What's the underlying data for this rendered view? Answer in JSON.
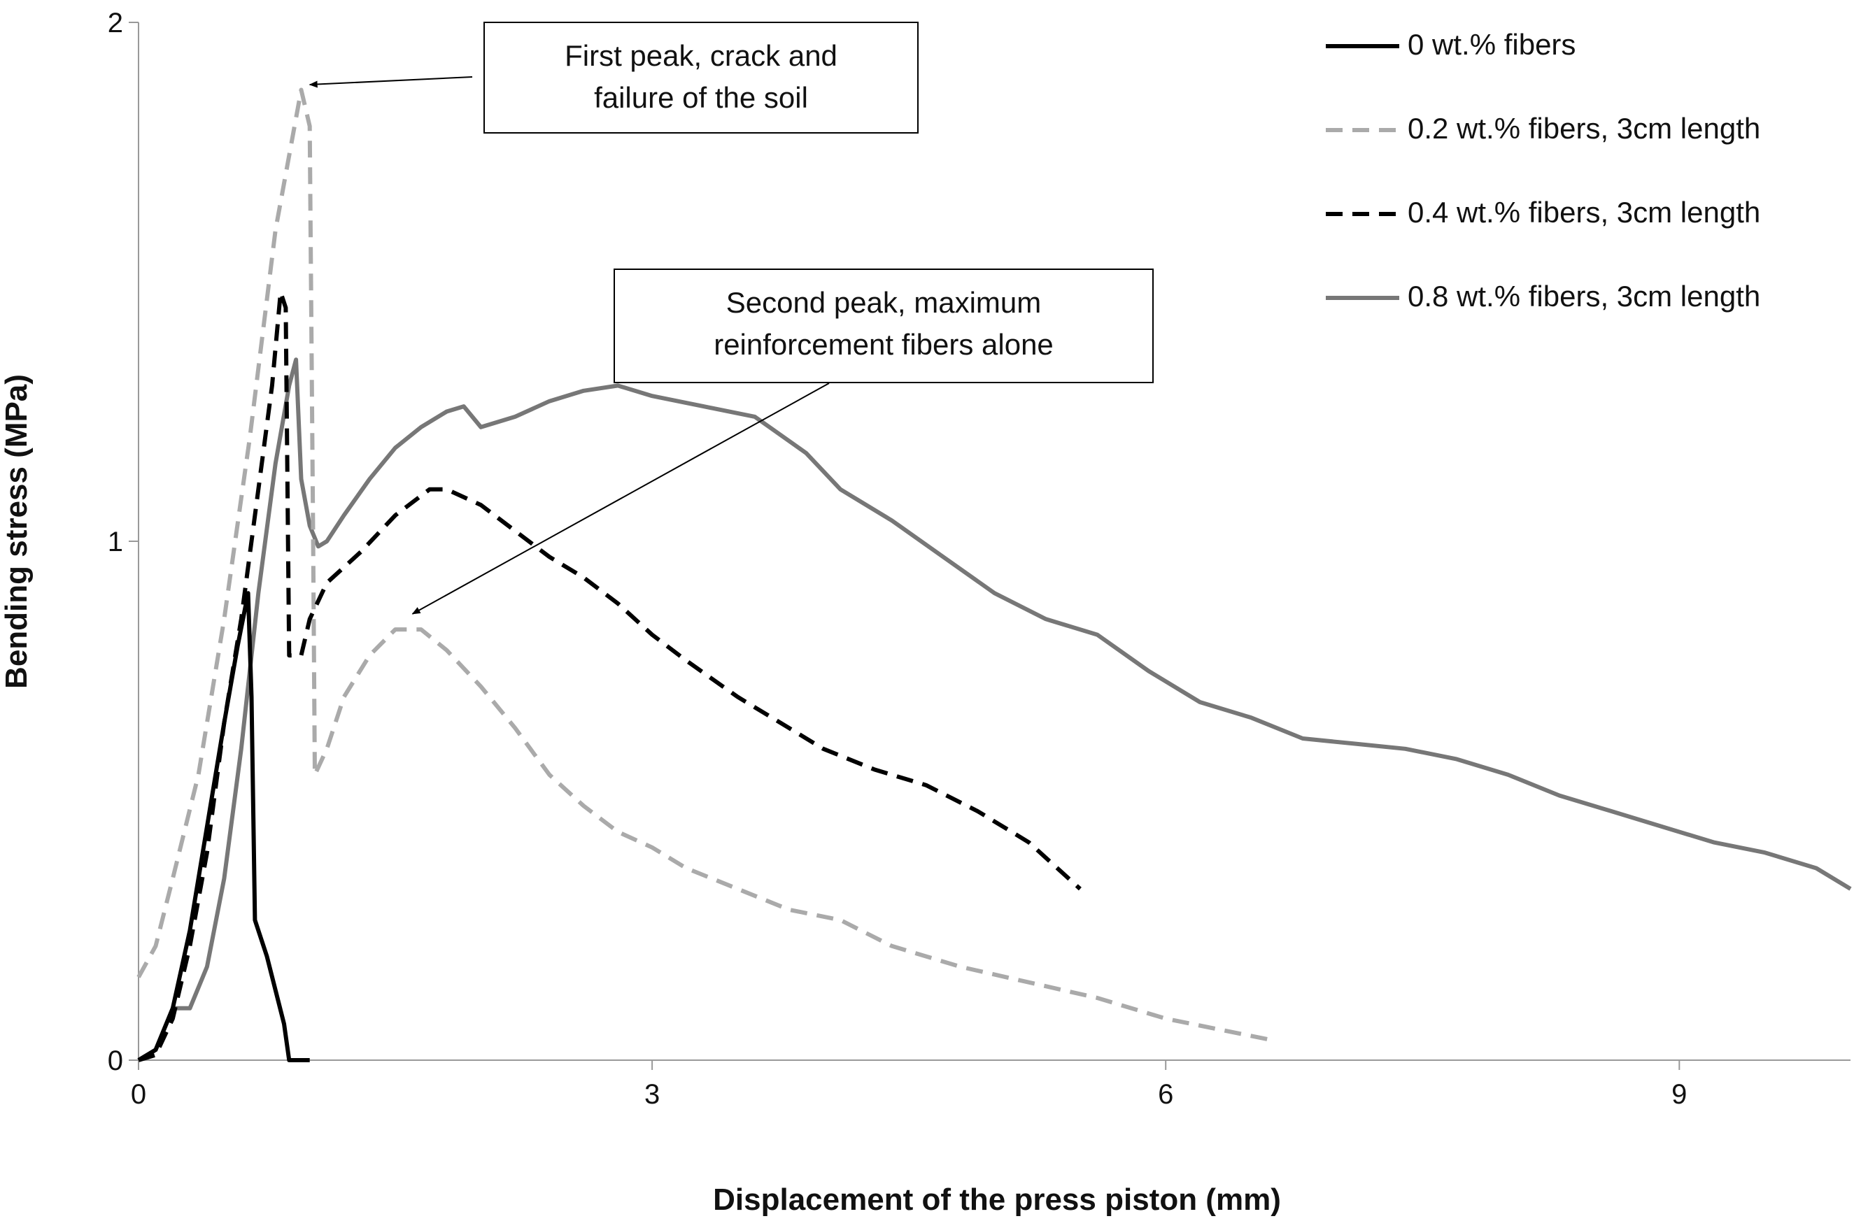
{
  "chart_data": {
    "type": "line",
    "title": "",
    "xlabel": "Displacement of the press piston (mm)",
    "ylabel": "Bending stress (MPa)",
    "xlim": [
      0,
      10
    ],
    "ylim": [
      0,
      2
    ],
    "xticks": [
      0,
      3,
      6,
      9
    ],
    "xtick_labels": [
      "0",
      "3",
      "6",
      "9"
    ],
    "yticks": [
      0,
      1,
      2
    ],
    "ytick_labels": [
      "0",
      "1",
      "2"
    ],
    "grid": false,
    "legend_position": "top-right",
    "series": [
      {
        "name": "0 wt.% fibers",
        "color": "#000000",
        "dash": "solid",
        "points": [
          [
            0,
            0
          ],
          [
            0.1,
            0.02
          ],
          [
            0.2,
            0.1
          ],
          [
            0.3,
            0.25
          ],
          [
            0.4,
            0.45
          ],
          [
            0.5,
            0.65
          ],
          [
            0.58,
            0.8
          ],
          [
            0.64,
            0.9
          ],
          [
            0.66,
            0.7
          ],
          [
            0.68,
            0.27
          ],
          [
            0.75,
            0.2
          ],
          [
            0.85,
            0.07
          ],
          [
            0.88,
            0
          ],
          [
            1.0,
            0
          ]
        ]
      },
      {
        "name": "0.2 wt.% fibers, 3cm length",
        "color": "#aaaaaa",
        "dash": "dashed",
        "points": [
          [
            0,
            0.16
          ],
          [
            0.1,
            0.22
          ],
          [
            0.2,
            0.35
          ],
          [
            0.35,
            0.55
          ],
          [
            0.5,
            0.85
          ],
          [
            0.65,
            1.2
          ],
          [
            0.8,
            1.6
          ],
          [
            0.95,
            1.87
          ],
          [
            1.0,
            1.8
          ],
          [
            1.02,
            1.0
          ],
          [
            1.03,
            0.55
          ],
          [
            1.1,
            0.6
          ],
          [
            1.2,
            0.7
          ],
          [
            1.35,
            0.78
          ],
          [
            1.5,
            0.83
          ],
          [
            1.65,
            0.83
          ],
          [
            1.8,
            0.79
          ],
          [
            2.0,
            0.72
          ],
          [
            2.2,
            0.64
          ],
          [
            2.4,
            0.55
          ],
          [
            2.6,
            0.49
          ],
          [
            2.8,
            0.44
          ],
          [
            3.0,
            0.41
          ],
          [
            3.2,
            0.37
          ],
          [
            3.5,
            0.33
          ],
          [
            3.8,
            0.29
          ],
          [
            4.1,
            0.27
          ],
          [
            4.4,
            0.22
          ],
          [
            4.8,
            0.18
          ],
          [
            5.2,
            0.15
          ],
          [
            5.6,
            0.12
          ],
          [
            6.0,
            0.08
          ],
          [
            6.3,
            0.06
          ],
          [
            6.6,
            0.04
          ]
        ]
      },
      {
        "name": "0.4 wt.% fibers, 3cm length",
        "color": "#000000",
        "dash": "dashed",
        "points": [
          [
            0,
            0
          ],
          [
            0.1,
            0.01
          ],
          [
            0.2,
            0.08
          ],
          [
            0.3,
            0.22
          ],
          [
            0.4,
            0.4
          ],
          [
            0.5,
            0.65
          ],
          [
            0.6,
            0.85
          ],
          [
            0.7,
            1.1
          ],
          [
            0.78,
            1.3
          ],
          [
            0.83,
            1.48
          ],
          [
            0.86,
            1.45
          ],
          [
            0.88,
            0.78
          ],
          [
            0.95,
            0.78
          ],
          [
            1.0,
            0.85
          ],
          [
            1.1,
            0.92
          ],
          [
            1.3,
            0.98
          ],
          [
            1.5,
            1.05
          ],
          [
            1.7,
            1.1
          ],
          [
            1.8,
            1.1
          ],
          [
            2.0,
            1.07
          ],
          [
            2.2,
            1.02
          ],
          [
            2.4,
            0.97
          ],
          [
            2.6,
            0.93
          ],
          [
            2.8,
            0.88
          ],
          [
            3.0,
            0.82
          ],
          [
            3.2,
            0.77
          ],
          [
            3.5,
            0.7
          ],
          [
            3.8,
            0.64
          ],
          [
            4.0,
            0.6
          ],
          [
            4.3,
            0.56
          ],
          [
            4.6,
            0.53
          ],
          [
            4.9,
            0.48
          ],
          [
            5.2,
            0.42
          ],
          [
            5.5,
            0.33
          ]
        ]
      },
      {
        "name": "0.8 wt.% fibers, 3cm length",
        "color": "#777777",
        "dash": "solid",
        "points": [
          [
            0,
            0
          ],
          [
            0.1,
            0.02
          ],
          [
            0.2,
            0.1
          ],
          [
            0.3,
            0.1
          ],
          [
            0.4,
            0.18
          ],
          [
            0.5,
            0.35
          ],
          [
            0.6,
            0.6
          ],
          [
            0.7,
            0.9
          ],
          [
            0.8,
            1.15
          ],
          [
            0.88,
            1.3
          ],
          [
            0.92,
            1.35
          ],
          [
            0.95,
            1.12
          ],
          [
            1.0,
            1.03
          ],
          [
            1.05,
            0.99
          ],
          [
            1.1,
            1.0
          ],
          [
            1.2,
            1.05
          ],
          [
            1.35,
            1.12
          ],
          [
            1.5,
            1.18
          ],
          [
            1.65,
            1.22
          ],
          [
            1.8,
            1.25
          ],
          [
            1.9,
            1.26
          ],
          [
            2.0,
            1.22
          ],
          [
            2.2,
            1.24
          ],
          [
            2.4,
            1.27
          ],
          [
            2.6,
            1.29
          ],
          [
            2.8,
            1.3
          ],
          [
            3.0,
            1.28
          ],
          [
            3.3,
            1.26
          ],
          [
            3.6,
            1.24
          ],
          [
            3.9,
            1.17
          ],
          [
            4.1,
            1.1
          ],
          [
            4.4,
            1.04
          ],
          [
            4.7,
            0.97
          ],
          [
            5.0,
            0.9
          ],
          [
            5.3,
            0.85
          ],
          [
            5.6,
            0.82
          ],
          [
            5.9,
            0.75
          ],
          [
            6.2,
            0.69
          ],
          [
            6.5,
            0.66
          ],
          [
            6.8,
            0.62
          ],
          [
            7.1,
            0.61
          ],
          [
            7.4,
            0.6
          ],
          [
            7.7,
            0.58
          ],
          [
            8.0,
            0.55
          ],
          [
            8.3,
            0.51
          ],
          [
            8.6,
            0.48
          ],
          [
            8.9,
            0.45
          ],
          [
            9.2,
            0.42
          ],
          [
            9.5,
            0.4
          ],
          [
            9.8,
            0.37
          ],
          [
            10.0,
            0.33
          ]
        ]
      }
    ],
    "annotations": [
      {
        "lines": [
          "First peak, crack and",
          "failure of the soil"
        ],
        "points_to": [
          1.0,
          1.88
        ]
      },
      {
        "lines": [
          "Second peak, maximum",
          "reinforcement fibers alone"
        ],
        "points_to": [
          1.6,
          0.86
        ]
      }
    ]
  }
}
